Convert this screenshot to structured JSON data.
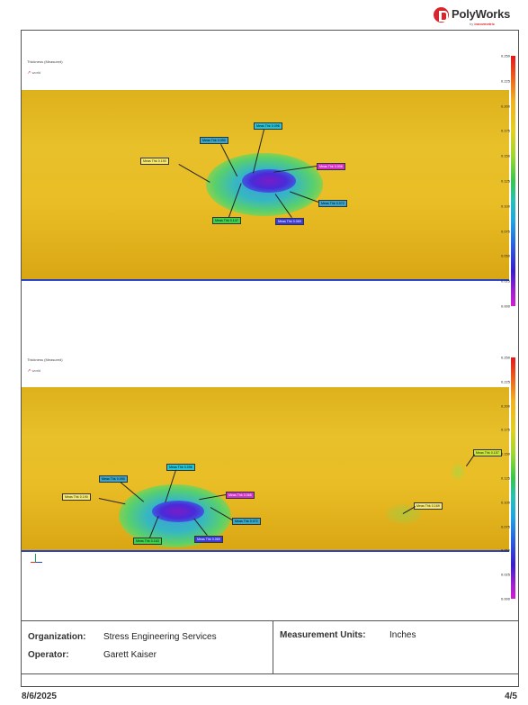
{
  "logo": {
    "text": "PolyWorks",
    "sub_prefix": "by ",
    "sub_brand": "innovmetric"
  },
  "panels": [
    {
      "title": "Thickness (Measured)",
      "world": "world",
      "scale_ticks": [
        "0.250",
        "0.225",
        "0.200",
        "0.175",
        "0.150",
        "0.125",
        "0.100",
        "0.075",
        "0.050",
        "0.025",
        "0.000"
      ],
      "callouts": [
        {
          "text": "Meas Thk 0.090",
          "style": "c-teal"
        },
        {
          "text": "Meas Thk 0.096",
          "style": "c-aqua"
        },
        {
          "text": "Meas Thk 0.190",
          "style": "c-yellow"
        },
        {
          "text": "Meas Thk 0.006",
          "style": "c-magenta"
        },
        {
          "text": "Meas Thk 0.072",
          "style": "c-teal"
        },
        {
          "text": "Meas Thk 0.147",
          "style": "c-green"
        },
        {
          "text": "Meas Thk 0.069",
          "style": "c-blue"
        }
      ]
    },
    {
      "title": "Thickness (Measured)",
      "world": "world",
      "scale_ticks": [
        "0.250",
        "0.225",
        "0.200",
        "0.175",
        "0.150",
        "0.125",
        "0.100",
        "0.075",
        "0.050",
        "0.025",
        "0.000"
      ],
      "callouts": [
        {
          "text": "Meas Thk 0.090",
          "style": "c-teal"
        },
        {
          "text": "Meas Thk 0.096",
          "style": "c-aqua"
        },
        {
          "text": "Meas Thk 0.190",
          "style": "c-yellow"
        },
        {
          "text": "Meas Thk 0.065",
          "style": "c-magenta"
        },
        {
          "text": "Meas Thk 0.072",
          "style": "c-teal"
        },
        {
          "text": "Meas Thk 0.163",
          "style": "c-green"
        },
        {
          "text": "Meas Thk 0.069",
          "style": "c-blue"
        },
        {
          "text": "Meas Thk 0.169",
          "style": "c-yellow"
        },
        {
          "text": "Meas Thk 0.157",
          "style": "c-lime"
        }
      ]
    }
  ],
  "info": {
    "organization_label": "Organization:",
    "organization_value": "Stress Engineering Services",
    "operator_label": "Operator:",
    "operator_value": "Garett Kaiser",
    "units_label": "Measurement Units:",
    "units_value": "Inches"
  },
  "footer": {
    "date": "8/6/2025",
    "page": "4/5"
  }
}
